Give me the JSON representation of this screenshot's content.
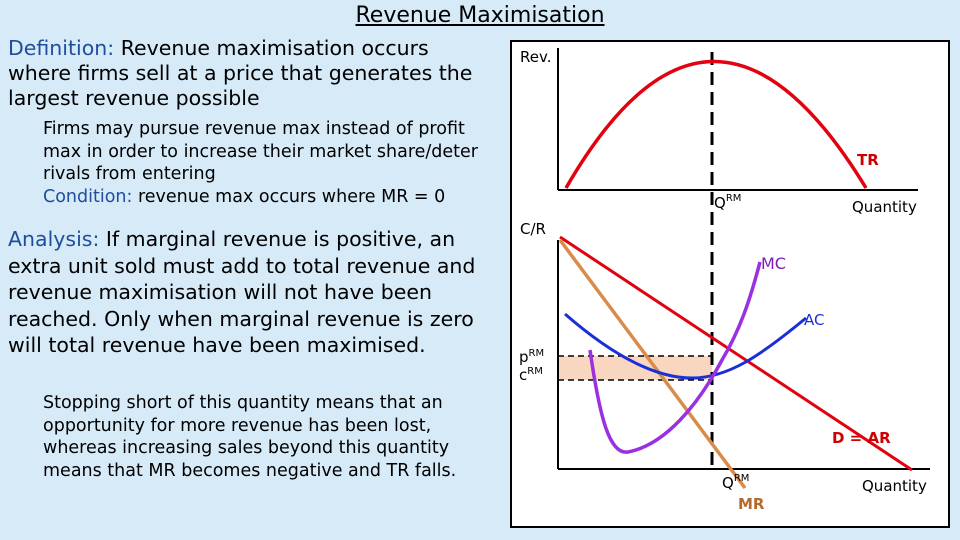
{
  "title": "Revenue Maximisation",
  "definition": {
    "label": "Definition:",
    "text": " Revenue maximisation occurs where firms sell at a price that generates the largest revenue possible"
  },
  "point1": "Firms may pursue revenue max instead of profit max in order to increase their market share/deter rivals from entering",
  "condition": {
    "label": "Condition:",
    "text": " revenue max occurs where MR = 0"
  },
  "analysis": {
    "label": "Analysis:",
    "text": " If marginal revenue is positive, an extra unit sold must add to total revenue and revenue maximisation will not have been reached. Only when marginal revenue is zero will total revenue have been maximised."
  },
  "point2": "Stopping short of this quantity means that an opportunity for more revenue has been lost, whereas increasing sales beyond this quantity means that MR becomes negative and TR falls.",
  "diagram": {
    "top": {
      "y_label": "Rev.",
      "curve_label": "TR",
      "x_label": "Quantity",
      "q_label": "Q",
      "q_sup": "RM"
    },
    "bottom": {
      "y_label": "C/R",
      "mc_label": "MC",
      "ac_label": "AC",
      "p_label": "p",
      "p_sup": "RM",
      "c_label": "c",
      "c_sup": "RM",
      "d_label": "D = AR",
      "q_label": "Q",
      "q_sup": "RM",
      "mr_label": "MR",
      "x_label": "Quantity"
    },
    "colors": {
      "tr": "#e3000f",
      "demand": "#e3000f",
      "mc": "#9b30e0",
      "ac": "#1a2fd6",
      "mr": "#d98c4a",
      "label_red": "#cc0000",
      "label_purple": "#7a1fb8",
      "label_blue": "#1a2fd6",
      "label_brown": "#b46a2a",
      "shading": "#f8d6bf"
    }
  }
}
